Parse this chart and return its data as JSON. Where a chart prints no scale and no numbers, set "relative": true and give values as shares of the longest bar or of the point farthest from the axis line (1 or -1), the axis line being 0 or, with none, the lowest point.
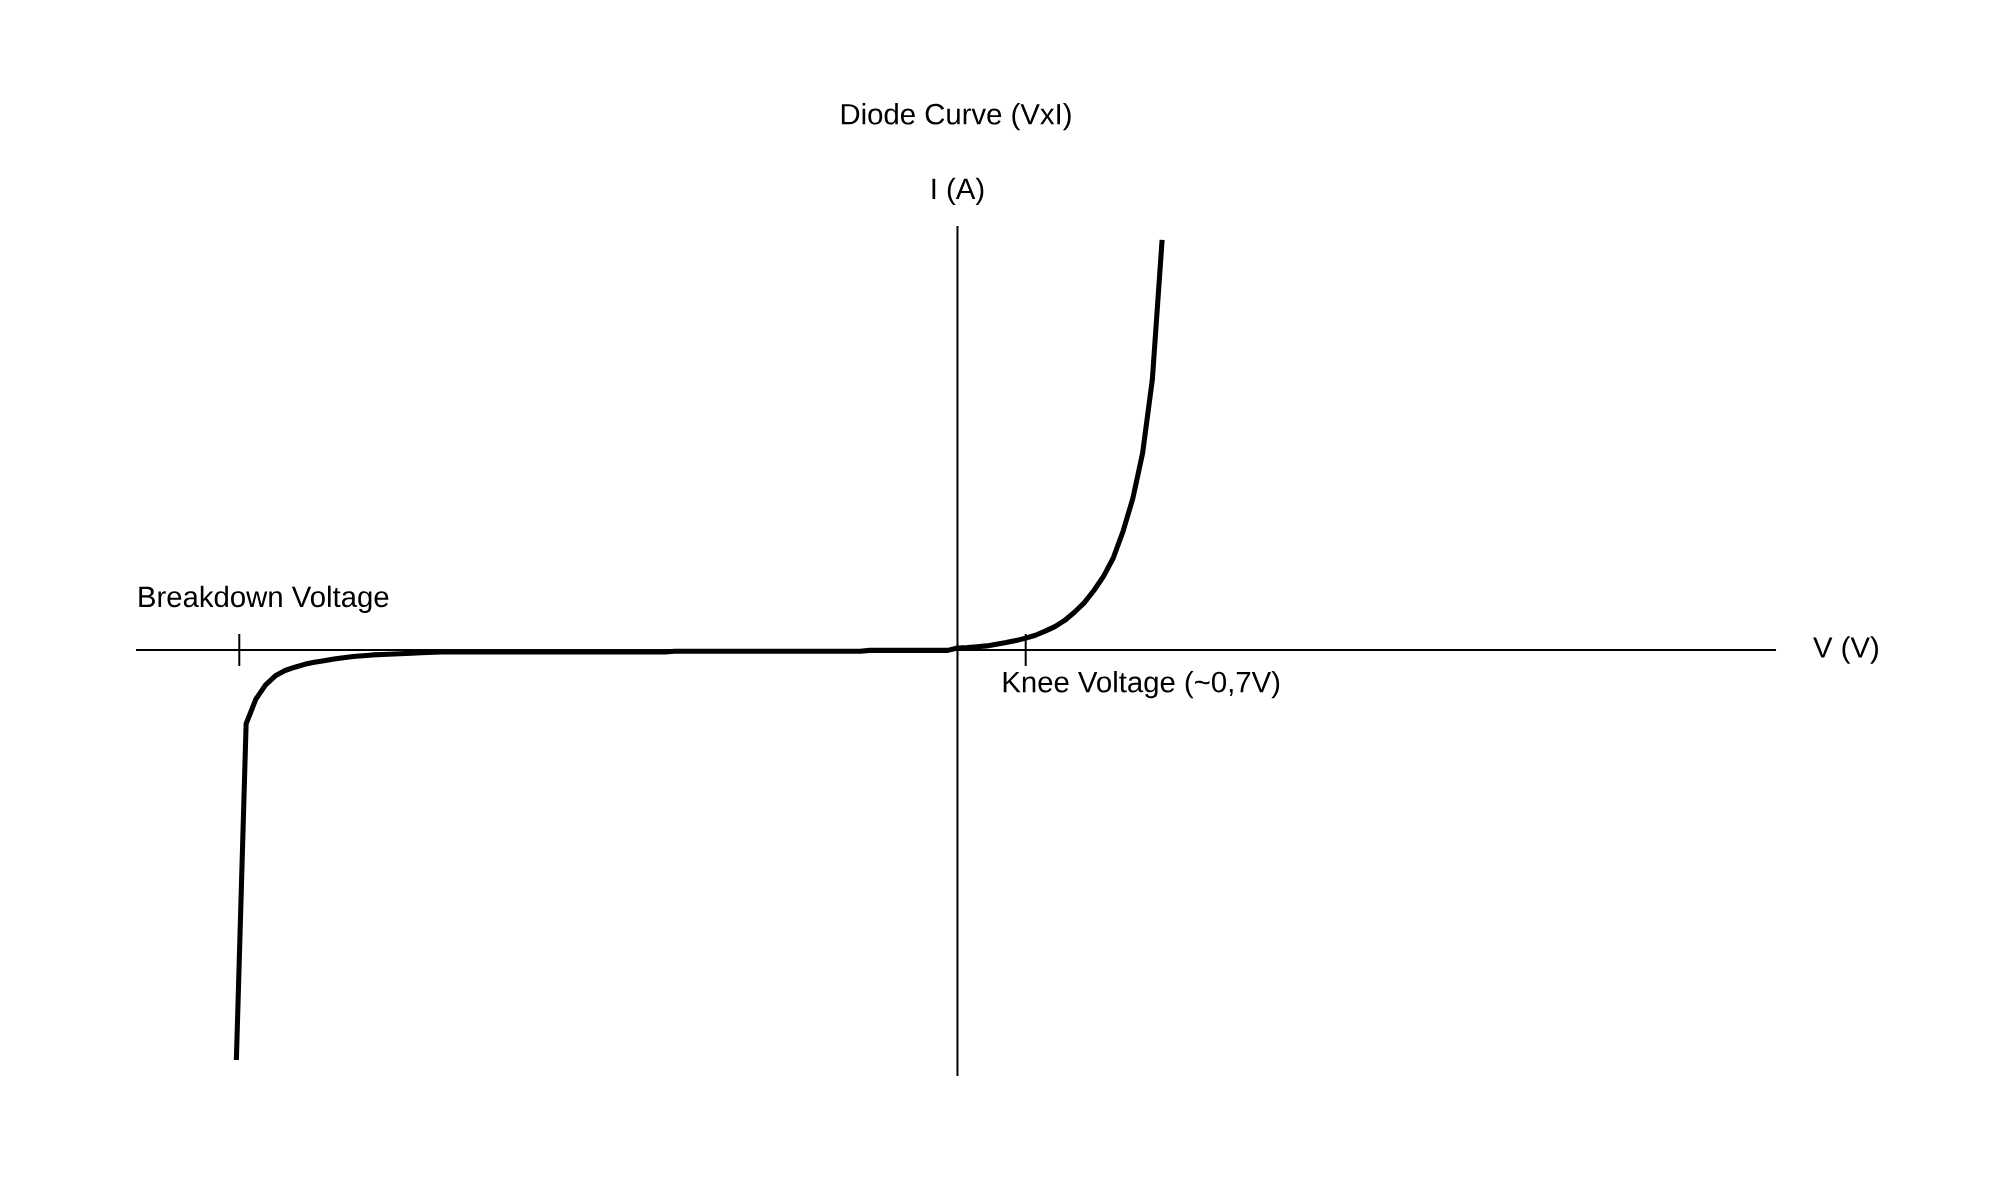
{
  "chart_data": {
    "type": "line",
    "title": "Diode Curve (VxI)",
    "ylabel": "I (A)",
    "relative": true,
    "categories": [
      null,
      null,
      null,
      null,
      null,
      null,
      null,
      null,
      null,
      null,
      null,
      null,
      null,
      null,
      null,
      null,
      null,
      null,
      null,
      null,
      null,
      null,
      null,
      null,
      null,
      null,
      null,
      null,
      null,
      null,
      null,
      null,
      null,
      null,
      null,
      null,
      null,
      null,
      null,
      null,
      null,
      null,
      null,
      null,
      null,
      null,
      null,
      null,
      null,
      null,
      null,
      null,
      null,
      null,
      null,
      null,
      null,
      null,
      null,
      null,
      null,
      null,
      null,
      null,
      null,
      null,
      null,
      null,
      null,
      null,
      null,
      null,
      null,
      null,
      null,
      null,
      null,
      null,
      null,
      null,
      null,
      null,
      null,
      null,
      null,
      null,
      null,
      null,
      null,
      null,
      null,
      null,
      null,
      null,
      null,
      null
    ],
    "series": [
      {
        "color": "#000000",
        "values": [
          -1.0,
          -0.18,
          -0.12,
          -0.085,
          -0.063,
          -0.05,
          -0.042,
          -0.035,
          -0.03,
          -0.026,
          -0.022,
          -0.019,
          -0.016,
          -0.014,
          -0.012,
          -0.011,
          -0.01,
          -0.009,
          -0.008,
          -0.007,
          -0.006,
          -0.005,
          -0.005,
          -0.005,
          -0.005,
          -0.005,
          -0.005,
          -0.005,
          -0.005,
          -0.005,
          -0.005,
          -0.005,
          -0.005,
          -0.005,
          -0.005,
          -0.005,
          -0.005,
          -0.005,
          -0.005,
          -0.005,
          -0.005,
          -0.005,
          -0.005,
          -0.005,
          -0.005,
          -0.003,
          -0.003,
          -0.003,
          -0.003,
          -0.003,
          -0.003,
          -0.003,
          -0.003,
          -0.003,
          -0.003,
          -0.003,
          -0.003,
          -0.003,
          -0.003,
          -0.003,
          -0.003,
          -0.003,
          -0.003,
          -0.003,
          -0.003,
          -0.001,
          -0.001,
          -0.001,
          -0.001,
          -0.001,
          -0.001,
          -0.001,
          -0.001,
          -0.001,
          0.005,
          0.006,
          0.008,
          0.01,
          0.014,
          0.018,
          0.023,
          0.029,
          0.036,
          0.046,
          0.057,
          0.072,
          0.092,
          0.115,
          0.145,
          0.18,
          0.225,
          0.29,
          0.37,
          0.48,
          0.66,
          1.0
        ]
      }
    ],
    "annotations": [
      "Breakdown Voltage",
      "Knee Voltage (~0,7V)",
      "V (V)"
    ],
    "marker": "none",
    "line_style": "solid"
  }
}
